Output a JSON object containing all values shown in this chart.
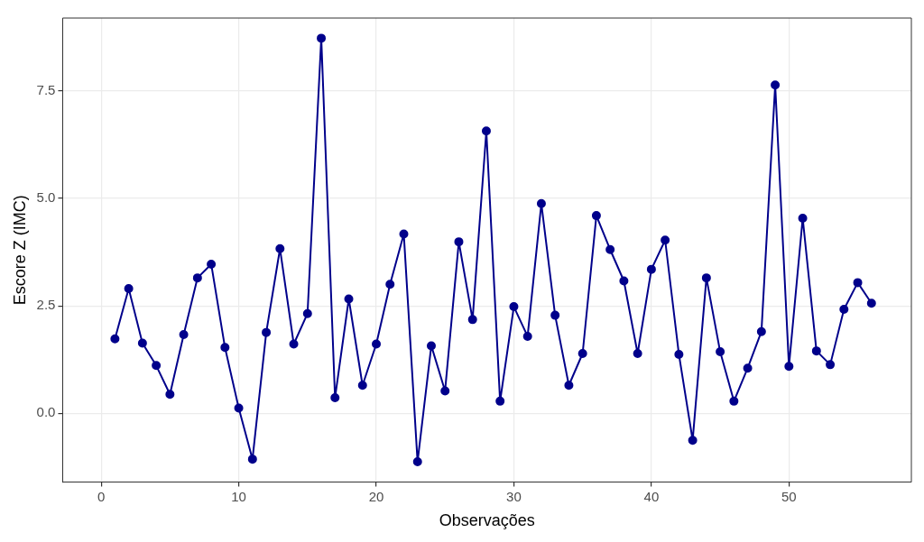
{
  "chart_data": {
    "type": "line",
    "xlabel": "Observações",
    "ylabel": "Escore Z (IMC)",
    "x": [
      1,
      2,
      3,
      4,
      5,
      6,
      7,
      8,
      9,
      10,
      11,
      12,
      13,
      14,
      15,
      16,
      17,
      18,
      19,
      20,
      21,
      22,
      23,
      24,
      25,
      26,
      27,
      28,
      29,
      30,
      31,
      32,
      33,
      34,
      35,
      36,
      37,
      38,
      39,
      40,
      41,
      42,
      43,
      44,
      45,
      46,
      47,
      48,
      49,
      50,
      51,
      52,
      53,
      54,
      55,
      56
    ],
    "series": [
      {
        "color": "#00008b",
        "values": [
          1.73,
          2.9,
          1.63,
          1.11,
          0.44,
          1.83,
          3.15,
          3.47,
          1.53,
          0.12,
          -1.07,
          1.88,
          3.83,
          1.61,
          2.32,
          8.73,
          0.36,
          2.66,
          0.65,
          1.61,
          3.0,
          4.17,
          -1.13,
          1.57,
          0.52,
          3.99,
          2.18,
          6.57,
          0.28,
          2.48,
          1.79,
          4.88,
          2.28,
          0.65,
          1.39,
          4.6,
          3.81,
          3.08,
          1.39,
          3.35,
          4.03,
          1.37,
          -0.63,
          3.15,
          1.43,
          0.28,
          1.05,
          1.9,
          7.64,
          1.09,
          4.54,
          1.45,
          1.13,
          2.42,
          3.04,
          2.56
        ]
      }
    ],
    "xlim": [
      -2.8,
      58.9
    ],
    "ylim": [
      -1.6,
      9.2
    ],
    "xticks": [
      0,
      10,
      20,
      30,
      40,
      50
    ],
    "yticks": [
      {
        "value": 0,
        "label": "0.0"
      },
      {
        "value": 2.5,
        "label": "2.5"
      },
      {
        "value": 5,
        "label": "5.0"
      },
      {
        "value": 7.5,
        "label": "7.5"
      }
    ],
    "grid": true,
    "legend": false,
    "marker": "circle",
    "line_style": "solid"
  }
}
